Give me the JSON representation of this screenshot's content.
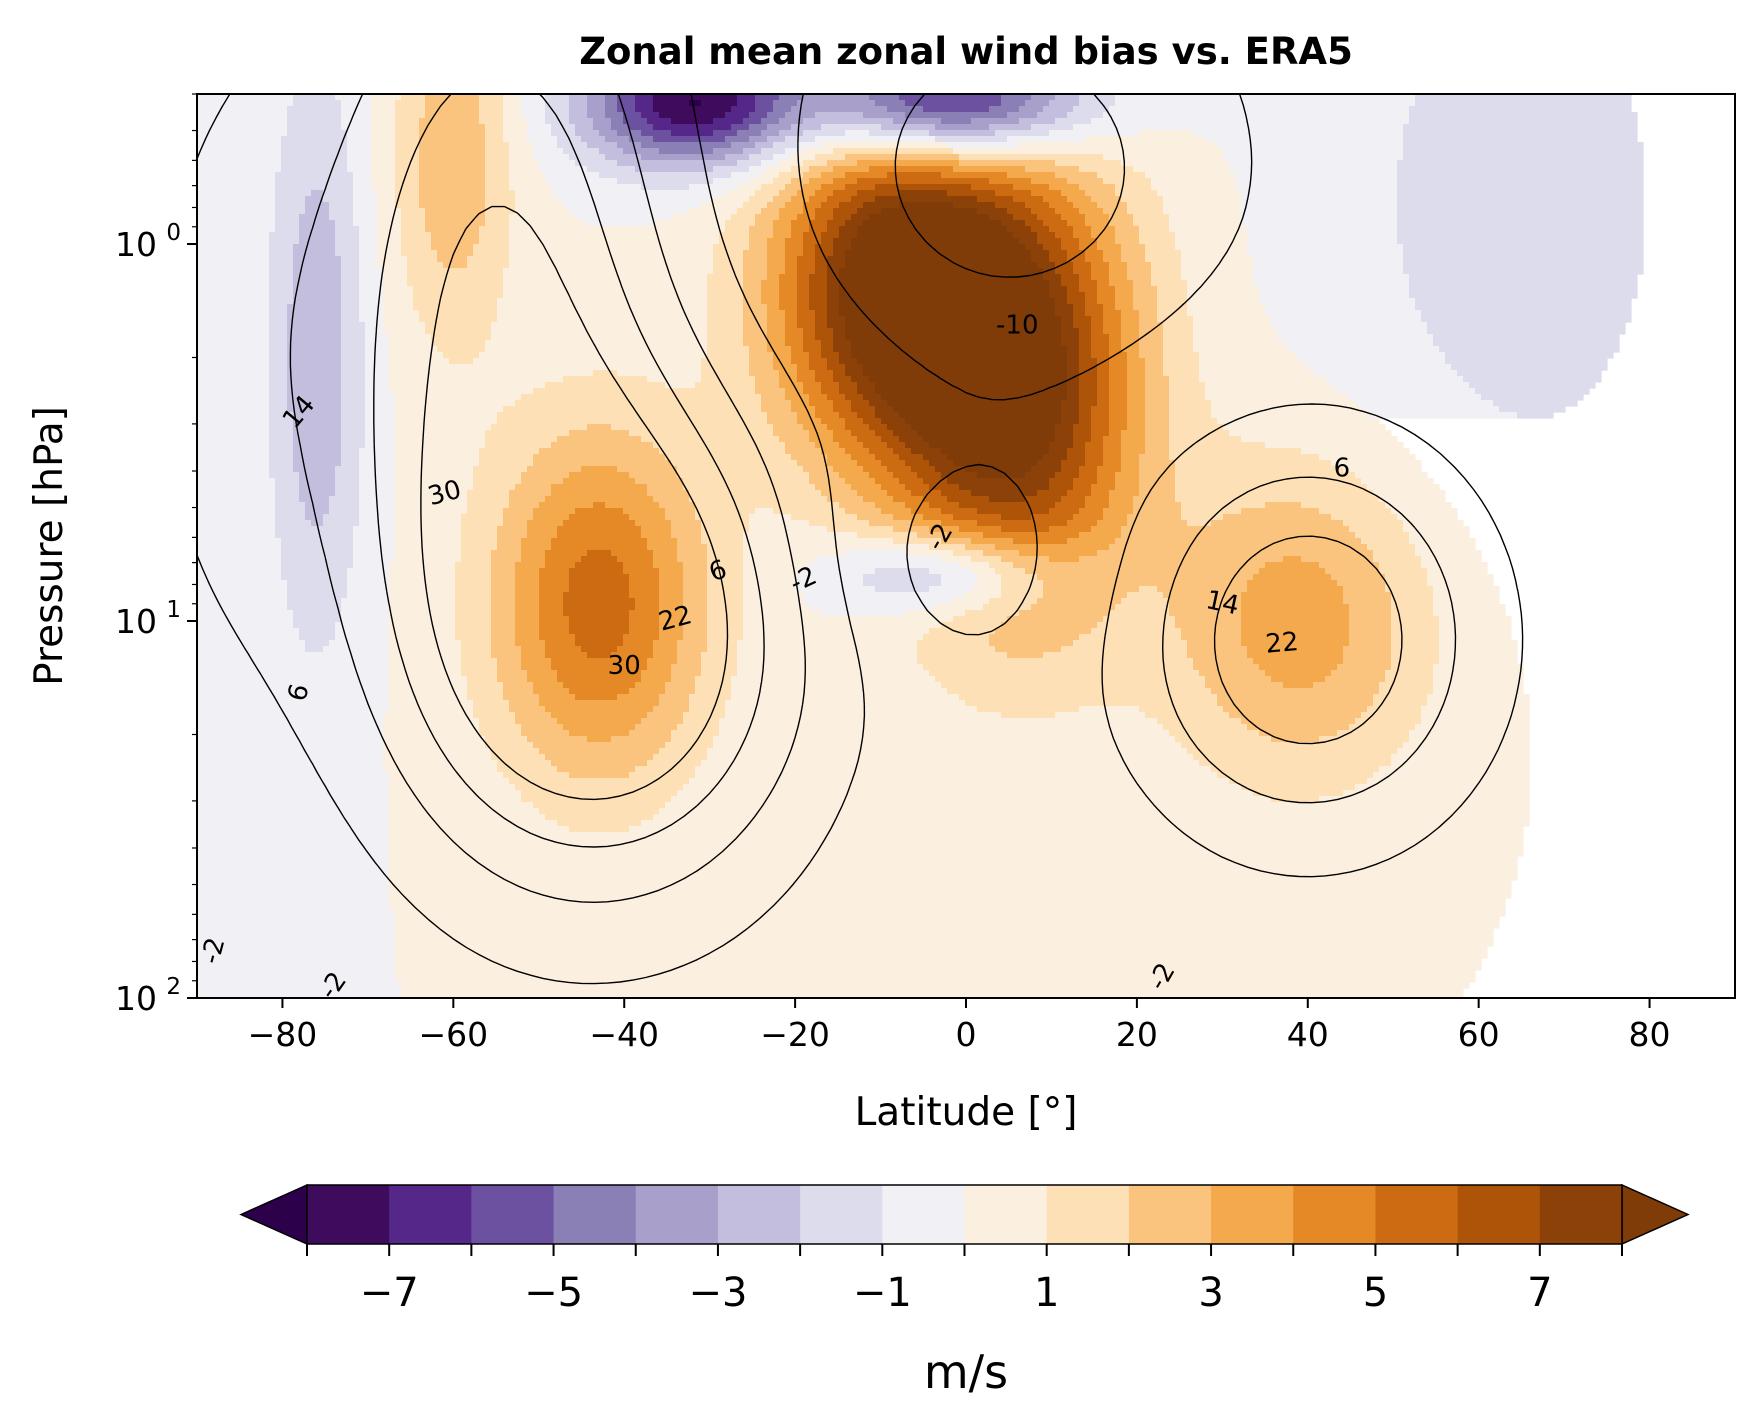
{
  "chart_data": {
    "type": "contour",
    "title": "Zonal mean zonal wind bias vs. ERA5",
    "xlabel": "Latitude [°]",
    "ylabel": "Pressure [hPa]",
    "xlim": [
      -90,
      90
    ],
    "ylim": [
      100,
      0.4
    ],
    "yscale": "log",
    "x_ticks": [
      {
        "value": -80,
        "label": "−80"
      },
      {
        "value": -60,
        "label": "−60"
      },
      {
        "value": -40,
        "label": "−40"
      },
      {
        "value": -20,
        "label": "−20"
      },
      {
        "value": 0,
        "label": "0"
      },
      {
        "value": 20,
        "label": "20"
      },
      {
        "value": 40,
        "label": "40"
      },
      {
        "value": 60,
        "label": "60"
      },
      {
        "value": 80,
        "label": "80"
      }
    ],
    "y_ticks": [
      {
        "value": 1,
        "base": "10",
        "exp": "0"
      },
      {
        "value": 10,
        "base": "10",
        "exp": "1"
      },
      {
        "value": 100,
        "base": "10",
        "exp": "2"
      }
    ],
    "colorbar": {
      "label": "m/s",
      "levels": [
        -8,
        -7,
        -6,
        -5,
        -4,
        -3,
        -2,
        -1,
        0,
        1,
        2,
        3,
        4,
        5,
        6,
        7,
        8
      ],
      "colors": [
        "#3f0b5c",
        "#542788",
        "#6b51a0",
        "#8b80b6",
        "#a89fcb",
        "#c3bedd",
        "#dcdcec",
        "#f0f0f5",
        "#fbf0e0",
        "#fee0b6",
        "#fbc47e",
        "#f4a94c",
        "#e58826",
        "#cc6b12",
        "#ad5409",
        "#8b4108"
      ],
      "under_color": "#2d004b",
      "over_color": "#7f3b08",
      "extend": "both",
      "tick_labels": [
        {
          "value": -7,
          "label": "−7"
        },
        {
          "value": -5,
          "label": "−5"
        },
        {
          "value": -3,
          "label": "−3"
        },
        {
          "value": -1,
          "label": "−1"
        },
        {
          "value": 1,
          "label": "1"
        },
        {
          "value": 3,
          "label": "3"
        },
        {
          "value": 5,
          "label": "5"
        },
        {
          "value": 7,
          "label": "7"
        }
      ]
    },
    "bias_field_features": [
      {
        "lat": -43,
        "p": 9,
        "bias": 5.5,
        "lat_halfwidth": 9,
        "logp_halfwidth": 0.33
      },
      {
        "lat": -60,
        "p": 0.6,
        "bias": 2.8,
        "lat_halfwidth": 5,
        "logp_halfwidth": 0.35
      },
      {
        "lat": -9,
        "p": 1.3,
        "bias": 8.5,
        "lat_halfwidth": 10,
        "logp_halfwidth": 0.32
      },
      {
        "lat": 6,
        "p": 2.4,
        "bias": 8.5,
        "lat_halfwidth": 10,
        "logp_halfwidth": 0.42
      },
      {
        "lat": -2,
        "p": 0.42,
        "bias": -9,
        "lat_halfwidth": 11,
        "logp_halfwidth": 0.11
      },
      {
        "lat": -32,
        "p": 0.42,
        "bias": -8,
        "lat_halfwidth": 9,
        "logp_halfwidth": 0.12
      },
      {
        "lat": -2,
        "p": 7.5,
        "bias": -4.2,
        "lat_halfwidth": 9,
        "logp_halfwidth": 0.08
      },
      {
        "lat": 39,
        "p": 10,
        "bias": 3.6,
        "lat_halfwidth": 11,
        "logp_halfwidth": 0.3
      },
      {
        "lat": -76,
        "p": 2,
        "bias": -2.8,
        "lat_halfwidth": 4,
        "logp_halfwidth": 0.55
      },
      {
        "lat": 65,
        "p": 0.8,
        "bias": -1.6,
        "lat_halfwidth": 15,
        "logp_halfwidth": 0.6
      }
    ],
    "wind_contours": {
      "levels": [
        -10,
        -2,
        6,
        14,
        22,
        30
      ],
      "labels": [
        {
          "text": "14",
          "lat": -78,
          "p": 2.8,
          "rotate": -50
        },
        {
          "text": "30",
          "lat": -61,
          "p": 4.6,
          "rotate": -15
        },
        {
          "text": "6",
          "lat": -29,
          "p": 7.4,
          "rotate": -20
        },
        {
          "text": "-2",
          "lat": -19,
          "p": 7.8,
          "rotate": -25
        },
        {
          "text": "22",
          "lat": -34,
          "p": 9.9,
          "rotate": -15
        },
        {
          "text": "30",
          "lat": -40,
          "p": 13.2,
          "rotate": 0
        },
        {
          "text": "6",
          "lat": -78,
          "p": 15.5,
          "rotate": -75
        },
        {
          "text": "-10",
          "lat": 6,
          "p": 1.65,
          "rotate": 0
        },
        {
          "text": "-2",
          "lat": -3,
          "p": 6.0,
          "rotate": -60
        },
        {
          "text": "6",
          "lat": 44,
          "p": 3.95,
          "rotate": 0
        },
        {
          "text": "14",
          "lat": 30,
          "p": 9.0,
          "rotate": 12
        },
        {
          "text": "22",
          "lat": 37,
          "p": 11.5,
          "rotate": -5
        },
        {
          "text": "-2",
          "lat": -88,
          "p": 75,
          "rotate": -75
        },
        {
          "text": "-2",
          "lat": -74,
          "p": 93,
          "rotate": -55
        },
        {
          "text": "-2",
          "lat": 23,
          "p": 88,
          "rotate": -60
        }
      ]
    }
  }
}
